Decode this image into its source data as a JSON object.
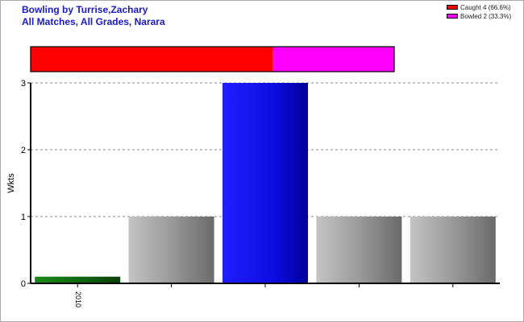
{
  "title_lines": [
    "Bowling by Turrise,Zachary",
    "All Matches, All Grades, Narara"
  ],
  "legend": [
    {
      "label": "Caught 4 (66.6%)",
      "color": "#ff0000"
    },
    {
      "label": "Bowled 2 (33.3%)",
      "color": "#ff00ff"
    }
  ],
  "chart_data": [
    {
      "type": "bar",
      "stacked_proportion": [
        {
          "name": "Caught",
          "value": 4,
          "color": "#ff0000"
        },
        {
          "name": "Bowled",
          "value": 2,
          "color": "#ff00ff"
        }
      ]
    },
    {
      "type": "bar",
      "categories": [
        "2010",
        "",
        "",
        "",
        ""
      ],
      "values": [
        0.1,
        1,
        3,
        1,
        1
      ],
      "bar_styles": [
        "green",
        "gray",
        "blue",
        "gray",
        "gray"
      ],
      "ylabel": "Wkts",
      "xlabel": "",
      "ylim": [
        0,
        3
      ],
      "yticks": [
        0,
        1,
        2,
        3
      ],
      "grid": true
    }
  ]
}
